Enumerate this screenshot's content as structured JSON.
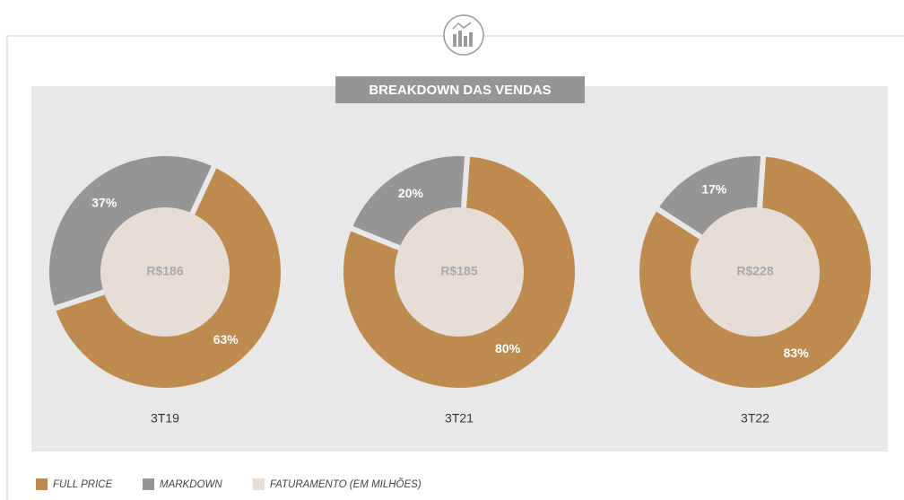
{
  "title": "BREAKDOWN DAS VENDAS",
  "legend": [
    {
      "name": "FULL PRICE",
      "color": "#bd8b4e"
    },
    {
      "name": "MARKDOWN",
      "color": "#959595"
    },
    {
      "name": "FATURAMENTO (EM MILHÕES)",
      "color": "#e6ddd7"
    }
  ],
  "chart_data": [
    {
      "type": "pie",
      "name": "3T19",
      "values": [
        63,
        37
      ],
      "value_labels": [
        "63%",
        "37%"
      ],
      "total": 186,
      "total_label": "R$186"
    },
    {
      "type": "pie",
      "name": "3T21",
      "values": [
        80,
        20
      ],
      "value_labels": [
        "80%",
        "20%"
      ],
      "total": 185,
      "total_label": "R$185"
    },
    {
      "type": "pie",
      "name": "3T22",
      "values": [
        83,
        17
      ],
      "value_labels": [
        "83%",
        "17%"
      ],
      "total": 228,
      "total_label": "R$228"
    }
  ]
}
